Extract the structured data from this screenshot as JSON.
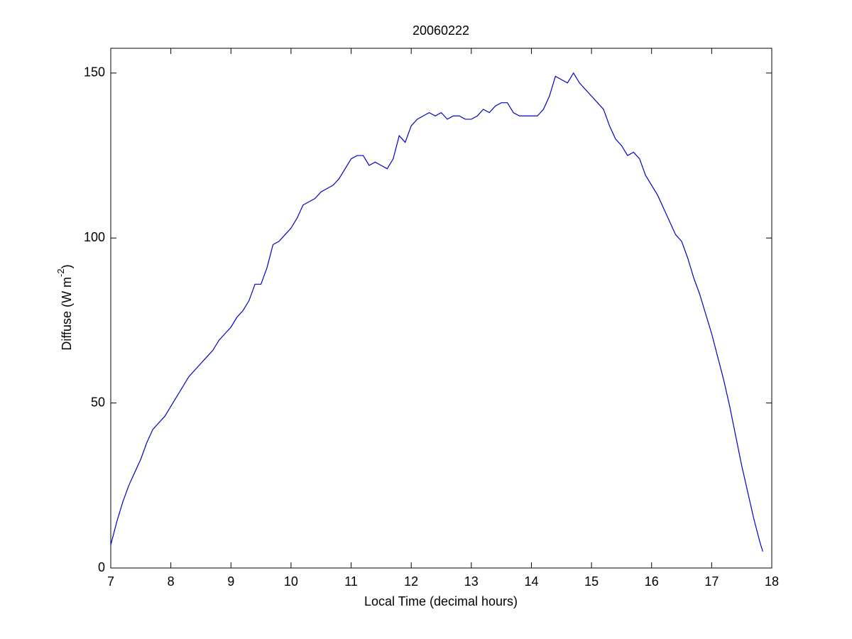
{
  "chart_data": {
    "type": "line",
    "title": "20060222",
    "xlabel": "Local Time (decimal hours)",
    "ylabel": {
      "text": "Diffuse (W m",
      "superscript": "-2",
      "suffix": ")"
    },
    "x": [
      7.0,
      7.1,
      7.2,
      7.3,
      7.4,
      7.5,
      7.6,
      7.7,
      7.8,
      7.9,
      8.0,
      8.1,
      8.2,
      8.3,
      8.4,
      8.5,
      8.6,
      8.7,
      8.8,
      8.9,
      9.0,
      9.1,
      9.2,
      9.3,
      9.4,
      9.5,
      9.6,
      9.7,
      9.8,
      9.9,
      10.0,
      10.1,
      10.2,
      10.3,
      10.4,
      10.5,
      10.6,
      10.7,
      10.8,
      10.9,
      11.0,
      11.1,
      11.2,
      11.3,
      11.4,
      11.5,
      11.6,
      11.7,
      11.8,
      11.9,
      12.0,
      12.1,
      12.2,
      12.3,
      12.4,
      12.5,
      12.6,
      12.7,
      12.8,
      12.9,
      13.0,
      13.1,
      13.2,
      13.3,
      13.4,
      13.5,
      13.6,
      13.7,
      13.8,
      13.9,
      14.0,
      14.1,
      14.2,
      14.3,
      14.4,
      14.5,
      14.6,
      14.7,
      14.8,
      14.9,
      15.0,
      15.1,
      15.2,
      15.3,
      15.4,
      15.5,
      15.6,
      15.7,
      15.8,
      15.9,
      16.0,
      16.1,
      16.2,
      16.3,
      16.4,
      16.5,
      16.6,
      16.7,
      16.8,
      16.9,
      17.0,
      17.1,
      17.2,
      17.3,
      17.4,
      17.5,
      17.6,
      17.7,
      17.8,
      17.85
    ],
    "series": [
      {
        "color": "#0000cc",
        "values": [
          7,
          14,
          20,
          25,
          29,
          33,
          38,
          42,
          44,
          46,
          49,
          52,
          55,
          58,
          60,
          62,
          64,
          66,
          69,
          71,
          73,
          76,
          78,
          81,
          86,
          86,
          91,
          98,
          99,
          101,
          103,
          106,
          110,
          111,
          112,
          114,
          115,
          116,
          118,
          121,
          124,
          125,
          125,
          122,
          123,
          122,
          121,
          124,
          131,
          129,
          134,
          136,
          137,
          138,
          137,
          138,
          136,
          137,
          137,
          136,
          136,
          137,
          139,
          138,
          140,
          141,
          141,
          138,
          137,
          137,
          137,
          137,
          139,
          143,
          149,
          148,
          147,
          150,
          147,
          145,
          143,
          141,
          139,
          134,
          130,
          128,
          125,
          126,
          124,
          119,
          116,
          113,
          109,
          105,
          101,
          99,
          94,
          88,
          83,
          77,
          71,
          64,
          57,
          49,
          40,
          31,
          23,
          15,
          8,
          5
        ]
      }
    ],
    "xlim": [
      7,
      18
    ],
    "xticks": [
      7,
      8,
      9,
      10,
      11,
      12,
      13,
      14,
      15,
      16,
      17,
      18
    ],
    "ylim": [
      0,
      157.5
    ],
    "yticks": [
      0,
      50,
      100,
      150
    ]
  }
}
